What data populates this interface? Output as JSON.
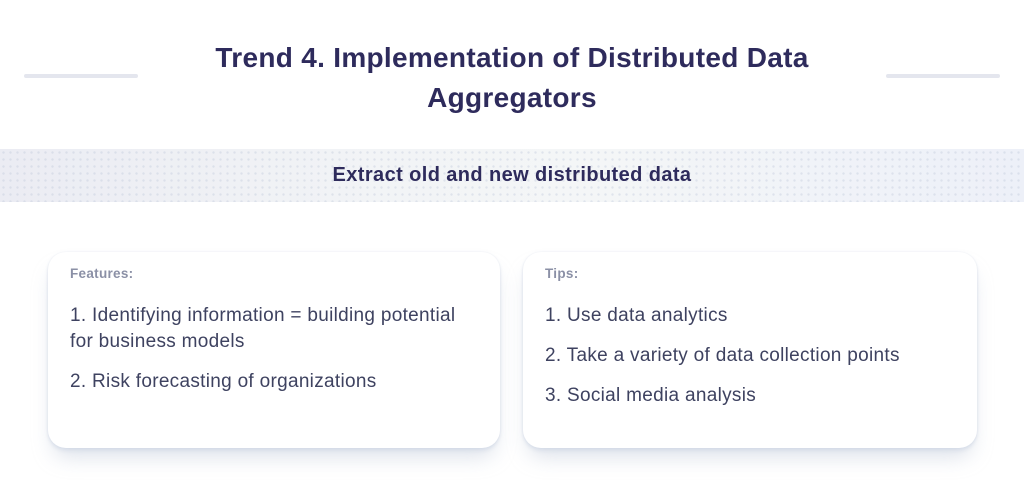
{
  "page": {
    "title": "Trend 4. Implementation of Distributed Data Aggregators",
    "subtitle": "Extract old and new distributed data"
  },
  "cards": [
    {
      "label": "Features:",
      "items": [
        "1. Identifying information = building potential for business models",
        "2. Risk forecasting of organizations"
      ]
    },
    {
      "label": "Tips:",
      "items": [
        "1. Use data analytics",
        "2. Take a variety of data collection points",
        "3. Social media analysis"
      ]
    }
  ],
  "colors": {
    "title_navy": "#2e2b5c",
    "body_text": "#3e4260",
    "label_gray": "#8b90a6",
    "divider_gray": "#e4e6ee",
    "banner_left": "#ebecf3",
    "banner_right": "#edf0f8",
    "card_background": "#ffffff"
  }
}
